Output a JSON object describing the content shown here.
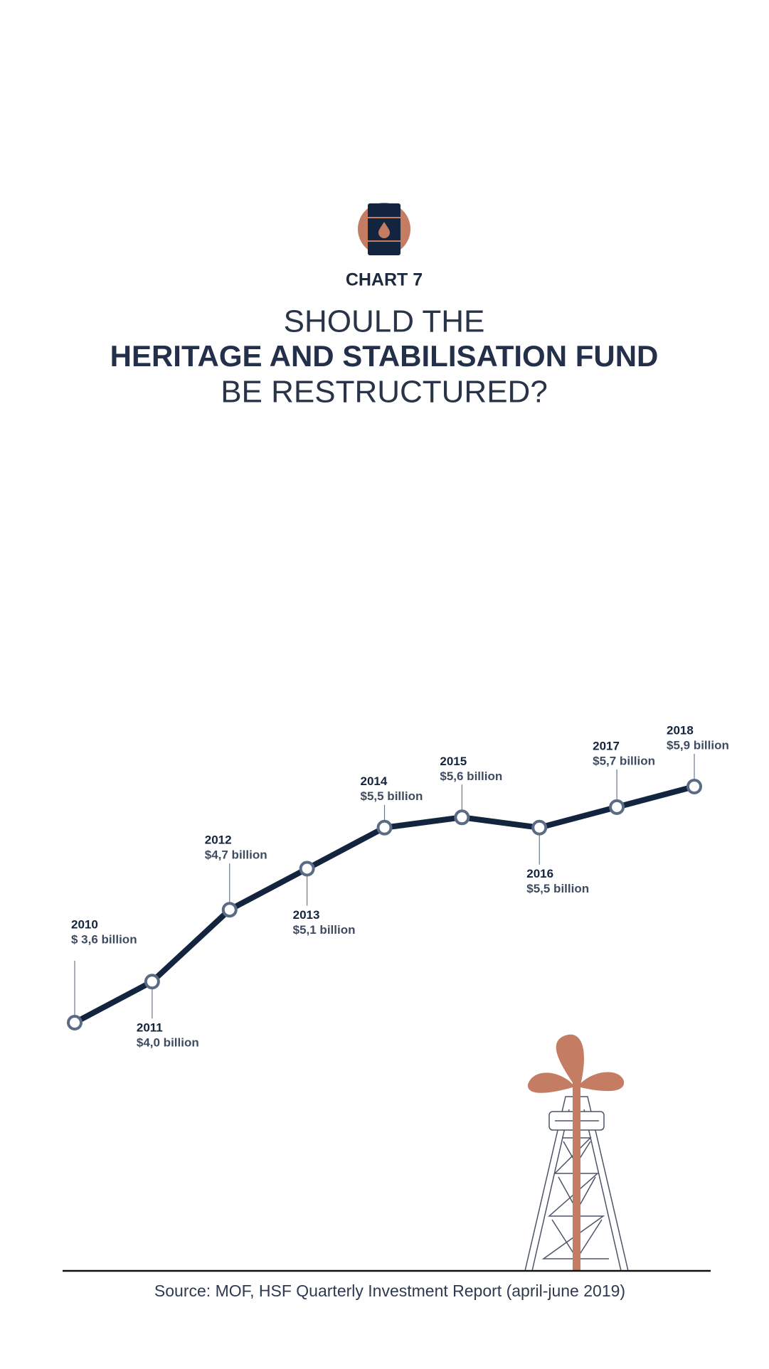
{
  "chart_data": {
    "type": "line",
    "chart_number": "CHART 7",
    "title": [
      "SHOULD THE",
      "HERITAGE AND STABILISATION FUND",
      "BE RESTRUCTURED?"
    ],
    "categories": [
      "2010",
      "2011",
      "2012",
      "2013",
      "2014",
      "2015",
      "2016",
      "2017",
      "2018"
    ],
    "values": [
      3.6,
      4.0,
      4.7,
      5.1,
      5.5,
      5.6,
      5.5,
      5.7,
      5.9
    ],
    "value_labels": [
      "$ 3,6 billion",
      "$4,0 billion",
      "$4,7 billion",
      "$5,1 billion",
      "$5,5 billion",
      "$5,6 billion",
      "$5,5 billion",
      "$5,7 billion",
      "$5,9 billion"
    ],
    "color": "#13253e",
    "source": "Source: MOF, HSF Quarterly Investment Report (april-june 2019)"
  }
}
